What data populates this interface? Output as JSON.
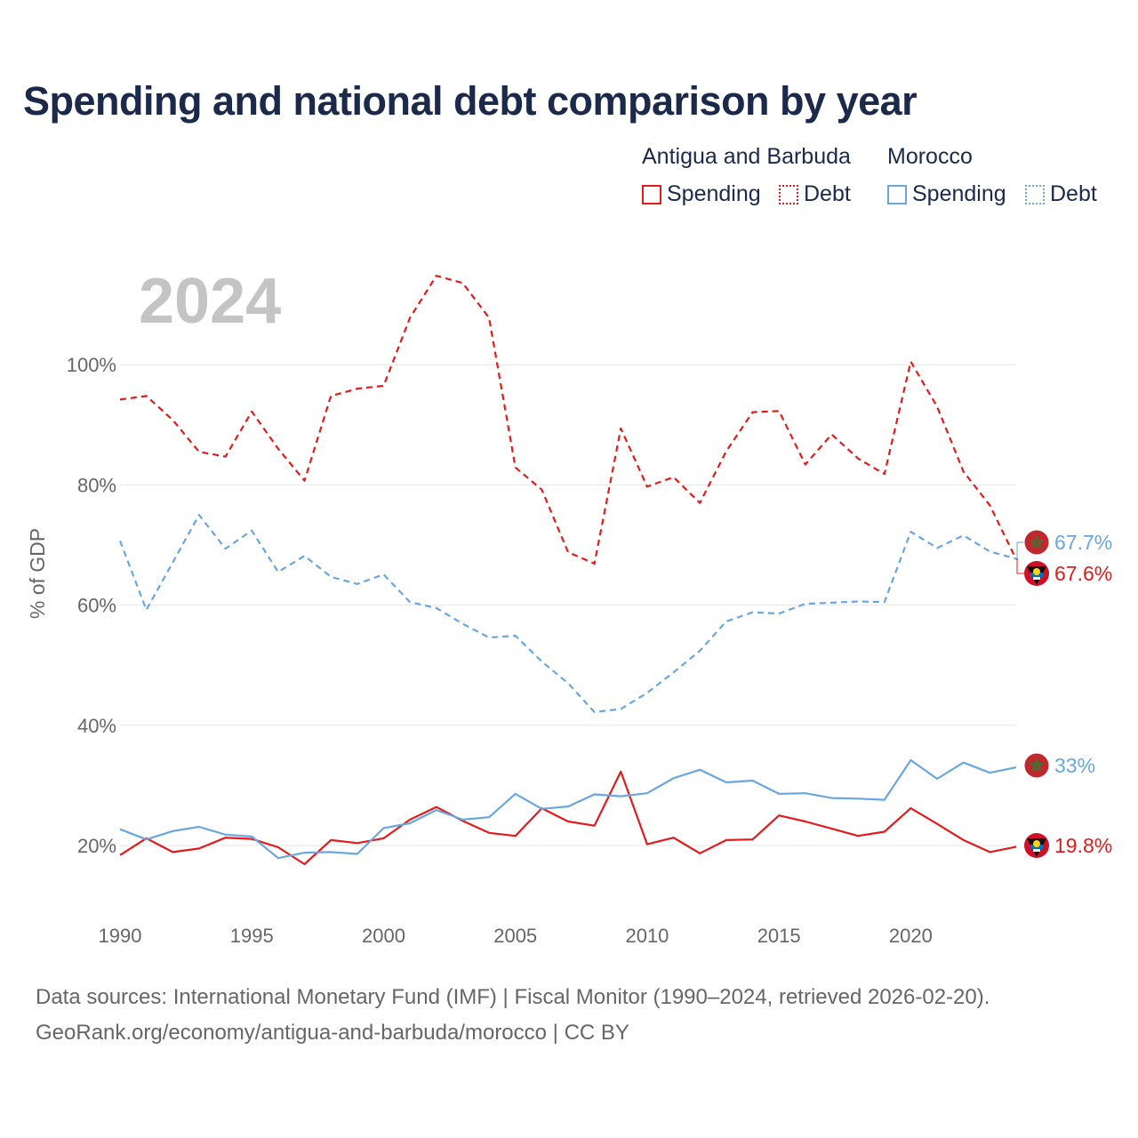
{
  "title": "Spending and national debt comparison by year",
  "legend": {
    "groups": [
      {
        "name": "Antigua and Barbuda",
        "color": "#e41a1c",
        "items": [
          {
            "label": "Spending",
            "style": "solid"
          },
          {
            "label": "Debt",
            "style": "dotted"
          }
        ]
      },
      {
        "name": "Morocco",
        "color": "#6aa6e0",
        "items": [
          {
            "label": "Spending",
            "style": "solid"
          },
          {
            "label": "Debt",
            "style": "dotted"
          }
        ]
      }
    ]
  },
  "year_label": "2024",
  "footer": {
    "line1": "Data sources: International Monetary Fund (IMF) | Fiscal Monitor (1990–2024, retrieved 2026-02-20).",
    "line2": "GeoRank.org/economy/antigua-and-barbuda/morocco | CC BY"
  },
  "chart_data": {
    "type": "line",
    "ylabel": "% of GDP",
    "xlabel": "",
    "xlim": [
      1990,
      2024
    ],
    "ylim": [
      10,
      115
    ],
    "yticks": [
      20,
      40,
      60,
      80,
      100
    ],
    "ytick_labels": [
      "20%",
      "40%",
      "60%",
      "80%",
      "100%"
    ],
    "xticks": [
      1990,
      1995,
      2000,
      2005,
      2010,
      2015,
      2020
    ],
    "xtick_labels": [
      "1990",
      "1995",
      "2000",
      "2005",
      "2010",
      "2015",
      "2020"
    ],
    "grid": true,
    "x": [
      1990,
      1991,
      1992,
      1993,
      1994,
      1995,
      1996,
      1997,
      1998,
      1999,
      2000,
      2001,
      2002,
      2003,
      2004,
      2005,
      2006,
      2007,
      2008,
      2009,
      2010,
      2011,
      2012,
      2013,
      2014,
      2015,
      2016,
      2017,
      2018,
      2019,
      2020,
      2021,
      2022,
      2023,
      2024
    ],
    "series": [
      {
        "name": "Antigua and Barbuda Debt",
        "color": "#e41a1c",
        "dash": "dashed",
        "end_label": "67.6%",
        "values": [
          94.2,
          94.8,
          90.8,
          85.5,
          84.7,
          92.2,
          86.0,
          80.7,
          94.8,
          96.0,
          96.5,
          107.8,
          114.8,
          113.6,
          107.8,
          82.9,
          79.2,
          68.8,
          66.9,
          89.4,
          79.7,
          81.3,
          77.0,
          85.6,
          92.1,
          92.3,
          83.4,
          88.4,
          84.4,
          81.8,
          100.5,
          93.0,
          82.2,
          76.6,
          67.6
        ]
      },
      {
        "name": "Morocco Debt",
        "color": "#6aa6e0",
        "dash": "dashed",
        "end_label": "67.7%",
        "values": [
          70.7,
          59.2,
          67.1,
          75.0,
          69.4,
          72.4,
          65.5,
          68.2,
          64.7,
          63.5,
          65.1,
          60.5,
          59.5,
          56.9,
          54.6,
          54.9,
          50.6,
          47.0,
          42.2,
          42.7,
          45.4,
          48.8,
          52.4,
          57.3,
          58.8,
          58.6,
          60.2,
          60.4,
          60.6,
          60.5,
          72.2,
          69.5,
          71.6,
          68.9,
          67.7
        ]
      },
      {
        "name": "Antigua and Barbuda Spending",
        "color": "#e41a1c",
        "dash": "solid",
        "end_label": "19.8%",
        "values": [
          18.4,
          21.2,
          18.9,
          19.5,
          21.3,
          21.1,
          19.7,
          16.9,
          20.9,
          20.4,
          21.2,
          24.3,
          26.4,
          24.1,
          22.1,
          21.6,
          26.2,
          24.0,
          23.3,
          32.3,
          20.2,
          21.3,
          18.7,
          20.9,
          21.0,
          25.0,
          24.0,
          22.8,
          21.6,
          22.3,
          26.2,
          23.6,
          20.9,
          18.9,
          19.8
        ]
      },
      {
        "name": "Morocco Spending",
        "color": "#6aa6e0",
        "dash": "solid",
        "end_label": "33%",
        "values": [
          22.7,
          21.0,
          22.4,
          23.1,
          21.8,
          21.5,
          17.9,
          18.8,
          18.9,
          18.6,
          22.9,
          23.7,
          25.9,
          24.3,
          24.7,
          28.6,
          26.1,
          26.5,
          28.5,
          28.2,
          28.7,
          31.2,
          32.6,
          30.5,
          30.8,
          28.6,
          28.7,
          27.9,
          27.8,
          27.6,
          34.2,
          31.1,
          33.8,
          32.1,
          33.0
        ]
      }
    ]
  }
}
